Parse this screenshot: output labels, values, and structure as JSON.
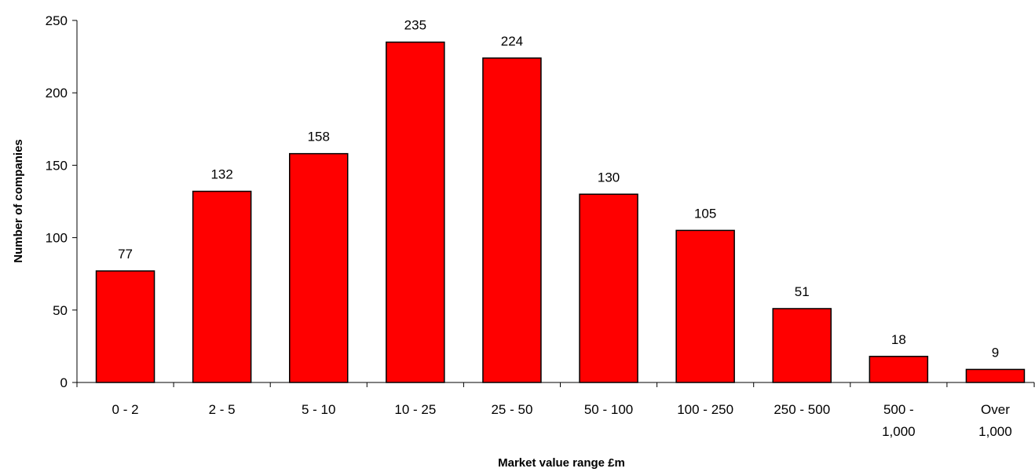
{
  "chart_data": {
    "type": "bar",
    "title": "",
    "xlabel": "Market value range £m",
    "ylabel": "Number of companies",
    "categories": [
      "0 - 2",
      "2 - 5",
      "5 - 10",
      "10 - 25",
      "25 - 50",
      "50 - 100",
      "100 - 250",
      "250 - 500",
      "500 - 1,000",
      "Over 1,000"
    ],
    "category_lines": [
      [
        "0 - 2"
      ],
      [
        "2 - 5"
      ],
      [
        "5 - 10"
      ],
      [
        "10 - 25"
      ],
      [
        "25 - 50"
      ],
      [
        "50 - 100"
      ],
      [
        "100 - 250"
      ],
      [
        "250 - 500"
      ],
      [
        "500 -",
        "1,000"
      ],
      [
        "Over",
        "1,000"
      ]
    ],
    "values": [
      77,
      132,
      158,
      235,
      224,
      130,
      105,
      51,
      18,
      9
    ],
    "ylim": [
      0,
      250
    ],
    "yticks": [
      0,
      50,
      100,
      150,
      200,
      250
    ],
    "grid": false,
    "legend": "none",
    "bar_color": "#ff0000",
    "bar_outline": "#000000"
  }
}
